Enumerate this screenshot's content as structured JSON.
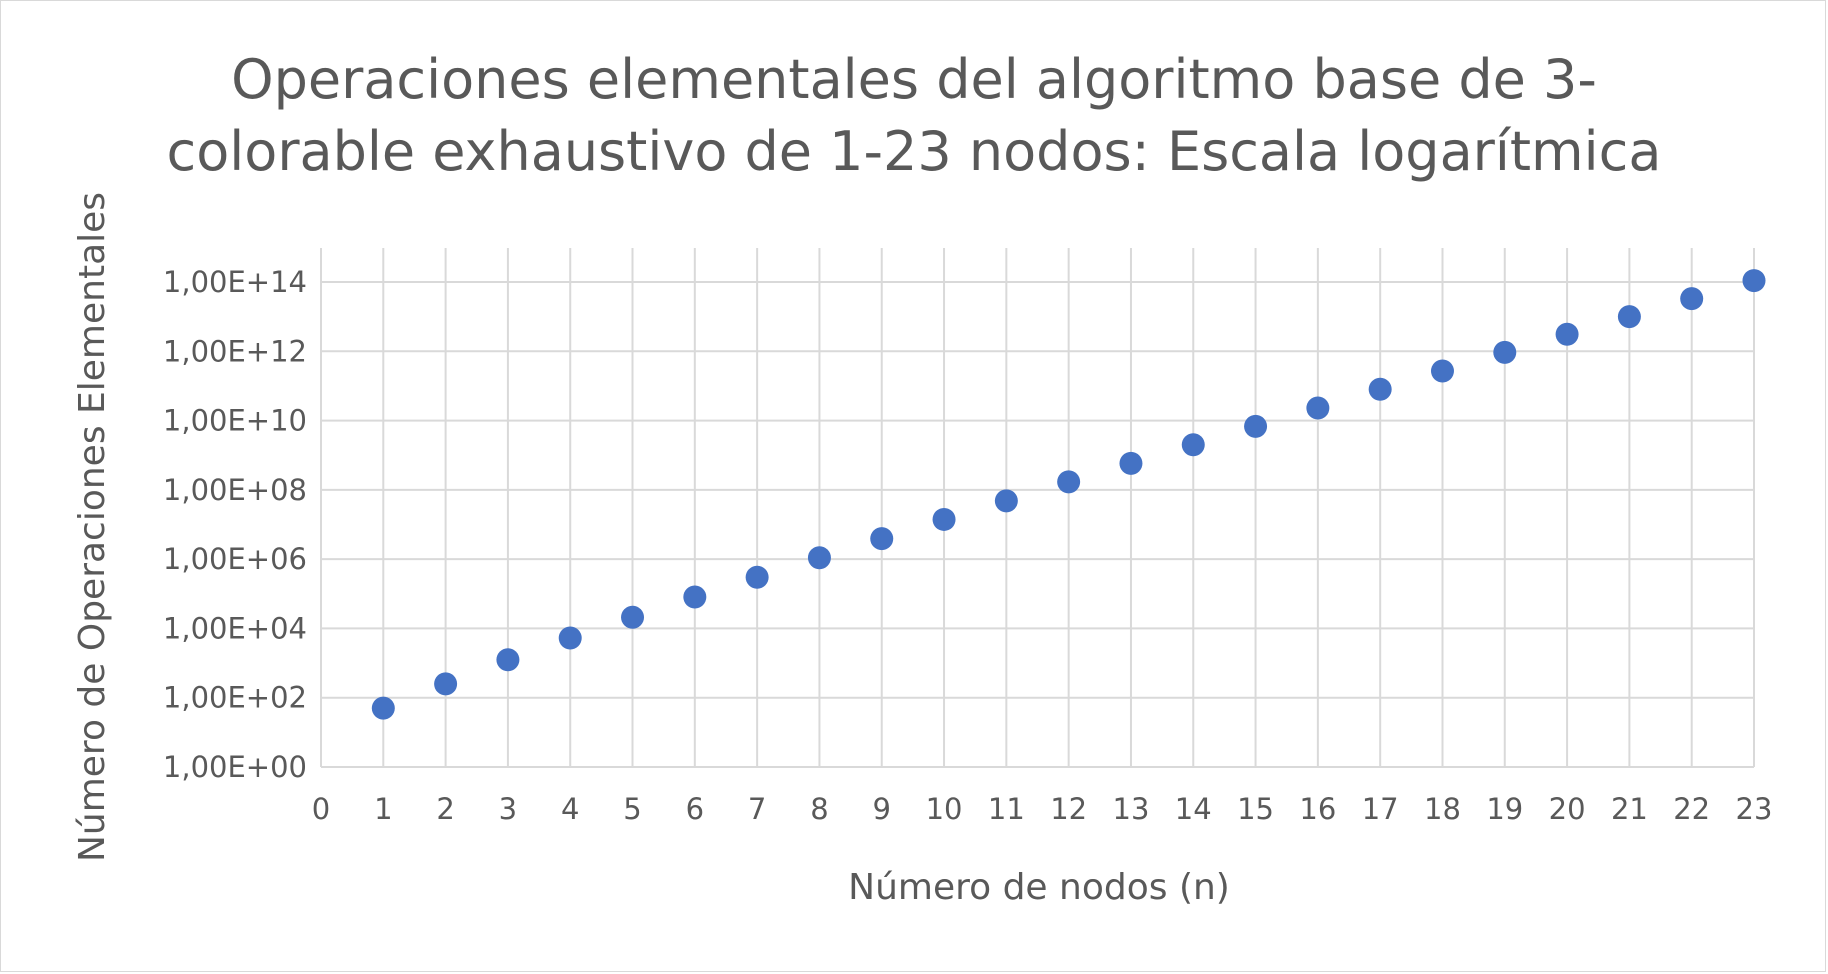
{
  "chart_data": {
    "type": "scatter",
    "title_lines": [
      "Operaciones elementales del algoritmo base de 3-",
      "colorable exhaustivo de 1-23 nodos: Escala logarítmica"
    ],
    "xlabel": "Número de nodos (n)",
    "ylabel": "Número de Operaciones Elementales",
    "xlim": [
      0,
      23
    ],
    "ylim": [
      1,
      100000000000000
    ],
    "yscale": "log",
    "grid": true,
    "legend": "none",
    "x_ticks": [
      "0",
      "1",
      "2",
      "3",
      "4",
      "5",
      "6",
      "7",
      "8",
      "9",
      "10",
      "11",
      "12",
      "13",
      "14",
      "15",
      "16",
      "17",
      "18",
      "19",
      "20",
      "21",
      "22",
      "23"
    ],
    "y_ticks": [
      {
        "value": 1,
        "label": "1,00E+00"
      },
      {
        "value": 100,
        "label": "1,00E+02"
      },
      {
        "value": 10000,
        "label": "1,00E+04"
      },
      {
        "value": 1000000,
        "label": "1,00E+06"
      },
      {
        "value": 100000000,
        "label": "1,00E+08"
      },
      {
        "value": 10000000000,
        "label": "1,00E+10"
      },
      {
        "value": 1000000000000,
        "label": "1,00E+12"
      },
      {
        "value": 100000000000000,
        "label": "1,00E+14"
      }
    ],
    "color": "#4472C4",
    "x": [
      1,
      2,
      3,
      4,
      5,
      6,
      7,
      8,
      9,
      10,
      11,
      12,
      13,
      14,
      15,
      16,
      17,
      18,
      19,
      20,
      21,
      22,
      23
    ],
    "y": [
      50,
      250,
      1250,
      5300,
      21000,
      81000,
      300000,
      1100000,
      3900000,
      14000000,
      48000000,
      170000000,
      580000000,
      2000000000,
      6800000000,
      23000000000,
      80000000000,
      270000000000,
      930000000000,
      3100000000000,
      10000000000000,
      33000000000000,
      110000000000000
    ]
  }
}
